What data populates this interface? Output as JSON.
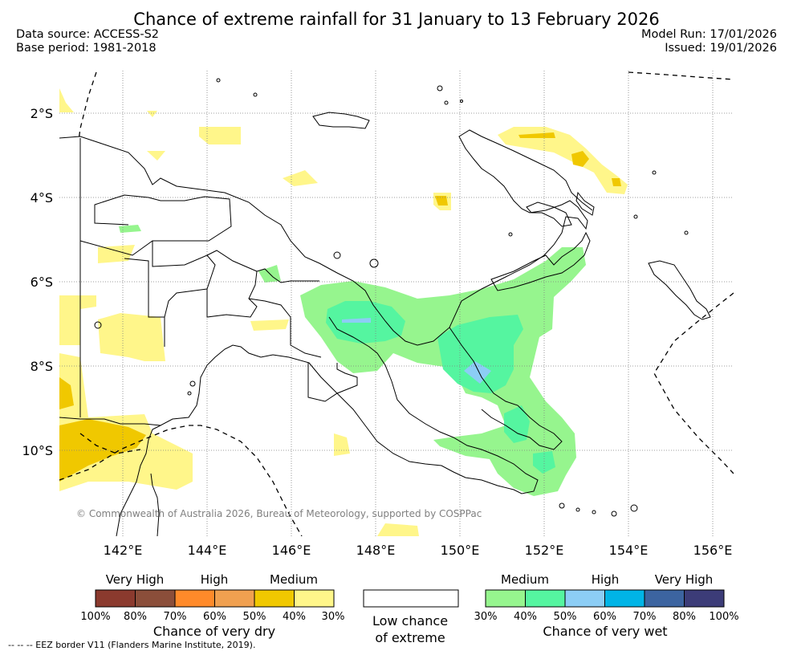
{
  "title": "Chance of extreme rainfall for 31 January to 13 February 2026",
  "meta": {
    "data_source": "Data source: ACCESS-S2",
    "base_period": "Base period: 1981-2018",
    "model_run": "Model Run: 17/01/2026",
    "issued": "Issued: 19/01/2026"
  },
  "axes": {
    "lat_labels": [
      "2°S",
      "4°S",
      "6°S",
      "8°S",
      "10°S"
    ],
    "lon_labels": [
      "142°E",
      "144°E",
      "146°E",
      "148°E",
      "150°E",
      "152°E",
      "154°E",
      "156°E"
    ]
  },
  "copyright": "© Commonwealth of Australia 2026, Bureau of Meteorology, supported by COSPPac",
  "legend": {
    "dry": {
      "headers": [
        "Very High",
        "High",
        "Medium"
      ],
      "colors": [
        "#8b3a2e",
        "#8b4e3a",
        "#ff8a2a",
        "#f0a050",
        "#f0c800",
        "#fff68a"
      ],
      "ticks": [
        "100%",
        "80%",
        "70%",
        "60%",
        "50%",
        "40%",
        "30%"
      ],
      "caption": "Chance of very dry"
    },
    "low": {
      "caption_line1": "Low chance",
      "caption_line2": "of extreme"
    },
    "wet": {
      "headers": [
        "Medium",
        "High",
        "Very High"
      ],
      "colors": [
        "#96f58e",
        "#55f5a0",
        "#8ccdf5",
        "#00b4e6",
        "#3c64a0",
        "#3c3c78"
      ],
      "ticks": [
        "30%",
        "40%",
        "50%",
        "60%",
        "70%",
        "80%",
        "100%"
      ],
      "caption": "Chance of very wet"
    }
  },
  "eez_note": "--  --  -- EEZ border V11 (Flanders Marine Institute, 2019)."
}
